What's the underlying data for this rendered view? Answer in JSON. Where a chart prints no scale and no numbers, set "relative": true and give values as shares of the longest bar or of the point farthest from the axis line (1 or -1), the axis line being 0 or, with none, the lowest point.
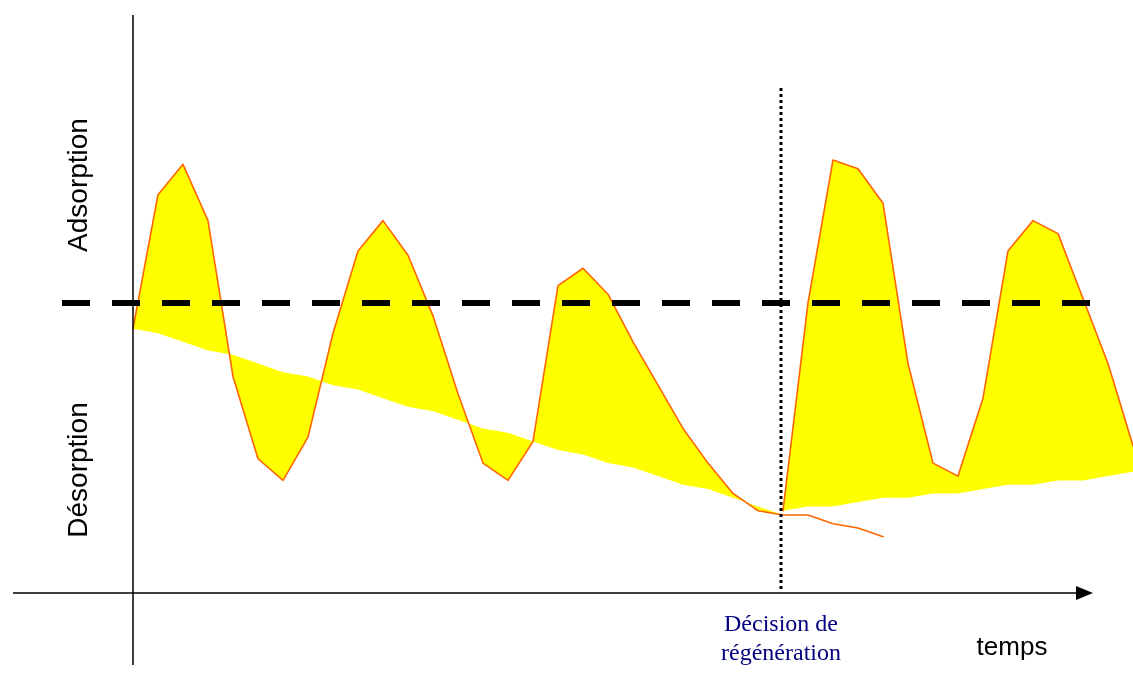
{
  "chart_data": {
    "type": "line",
    "relative": true,
    "xlabel": "temps",
    "categories": [
      null,
      null,
      null,
      null,
      null,
      null,
      null,
      null,
      null,
      null,
      null,
      null,
      null,
      null,
      null,
      null,
      null,
      null,
      null,
      null,
      null,
      null,
      null,
      null,
      null,
      null,
      null,
      null,
      null,
      null,
      null,
      null,
      null,
      null,
      null,
      null,
      null,
      null,
      null,
      null,
      null
    ],
    "grid": false,
    "marker": "none",
    "annotations": [
      "Adsorption",
      "Désorption"
    ],
    "ref_lines": [
      {
        "axis": "y",
        "value": 0.67,
        "color": "#000000",
        "line_style": "dashed"
      },
      {
        "axis": "x",
        "label": "Décision de régénération",
        "color": "#000000",
        "line_style": "dotted"
      }
    ],
    "series": [
      {
        "color": "#ff6600",
        "values": [
          0.61,
          0.92,
          0.99,
          0.86,
          0.5,
          0.31,
          0.26,
          0.36,
          0.6,
          0.79,
          0.86,
          0.78,
          0.64,
          0.46,
          0.3,
          0.26,
          0.35,
          0.71,
          0.75,
          0.69,
          0.58,
          0.48,
          0.38,
          0.3,
          0.23,
          0.19,
          0.18,
          0.18,
          0.16,
          0.15,
          0.13,
          null,
          null,
          null,
          null,
          null,
          null,
          null,
          null,
          null,
          null
        ],
        "lower": [
          0.61,
          0.6,
          0.58,
          0.56,
          0.55,
          0.53,
          0.51,
          0.5,
          0.48,
          0.47,
          0.45,
          0.43,
          0.42,
          0.4,
          0.38,
          0.37,
          0.35,
          0.33,
          0.32,
          0.3,
          0.29,
          0.27,
          0.25,
          0.24,
          0.22,
          0.2,
          0.18,
          null,
          null,
          null,
          null,
          null,
          null,
          null,
          null,
          null,
          null,
          null,
          null,
          null,
          null
        ],
        "upper": [
          0.61,
          0.92,
          0.99,
          0.86,
          0.5,
          0.31,
          0.26,
          0.36,
          0.6,
          0.79,
          0.86,
          0.78,
          0.64,
          0.46,
          0.3,
          0.26,
          0.35,
          0.71,
          0.75,
          0.69,
          0.58,
          0.48,
          0.38,
          0.3,
          0.23,
          0.19,
          0.18,
          null,
          null,
          null,
          null,
          null,
          null,
          null,
          null,
          null,
          null,
          null,
          null,
          null,
          null
        ]
      },
      {
        "color": "#ff6600",
        "values": [
          null,
          null,
          null,
          null,
          null,
          null,
          null,
          null,
          null,
          null,
          null,
          null,
          null,
          null,
          null,
          null,
          null,
          null,
          null,
          null,
          null,
          null,
          null,
          null,
          null,
          null,
          0.19,
          0.67,
          1,
          0.98,
          0.9,
          0.53,
          0.3,
          0.27,
          0.45,
          0.79,
          0.86,
          0.83,
          0.68,
          0.53,
          0.34
        ],
        "lower": [
          null,
          null,
          null,
          null,
          null,
          null,
          null,
          null,
          null,
          null,
          null,
          null,
          null,
          null,
          null,
          null,
          null,
          null,
          null,
          null,
          null,
          null,
          null,
          null,
          null,
          null,
          0.19,
          0.2,
          0.2,
          0.21,
          0.22,
          0.22,
          0.23,
          0.23,
          0.24,
          0.25,
          0.25,
          0.26,
          0.26,
          0.27,
          0.28
        ],
        "upper": [
          null,
          null,
          null,
          null,
          null,
          null,
          null,
          null,
          null,
          null,
          null,
          null,
          null,
          null,
          null,
          null,
          null,
          null,
          null,
          null,
          null,
          null,
          null,
          null,
          null,
          null,
          0.19,
          0.67,
          1,
          0.98,
          0.9,
          0.53,
          0.3,
          0.27,
          0.45,
          0.79,
          0.86,
          0.83,
          0.68,
          0.53,
          0.34
        ]
      }
    ]
  }
}
